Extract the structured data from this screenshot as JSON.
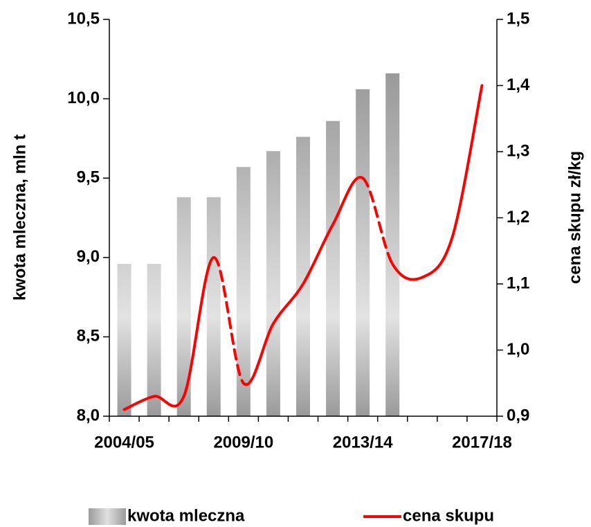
{
  "chart_data": {
    "type": "bar_line",
    "categories": [
      "2004/05",
      null,
      null,
      null,
      "2009/10",
      null,
      null,
      null,
      "2013/14",
      null,
      null,
      null,
      "2017/18"
    ],
    "series": [
      {
        "name": "kwota mleczna",
        "type": "bar",
        "color": "#a6a6a6",
        "values": [
          8.96,
          8.96,
          9.38,
          9.38,
          9.57,
          9.67,
          9.76,
          9.86,
          10.06,
          10.16,
          null,
          null,
          null
        ]
      },
      {
        "name": "cena skupu",
        "type": "line",
        "axis": "y2",
        "color": "#ff0000",
        "values": [
          0.91,
          0.93,
          0.93,
          1.14,
          0.95,
          1.04,
          1.1,
          1.19,
          1.26,
          1.13,
          1.11,
          1.17,
          1.4
        ],
        "dashed_segments": [
          [
            3,
            4
          ],
          [
            8,
            9
          ]
        ]
      }
    ],
    "ylabel": "kwota mleczna, mln t",
    "y2label": "cena skupu zł/kg",
    "ylim": [
      8.0,
      10.5
    ],
    "yticks": [
      {
        "value": 8.0,
        "label": "8,0"
      },
      {
        "value": 8.5,
        "label": "8,5"
      },
      {
        "value": 9.0,
        "label": "9,0"
      },
      {
        "value": 9.5,
        "label": "9,5"
      },
      {
        "value": 10.0,
        "label": "10,0"
      },
      {
        "value": 10.5,
        "label": "10,5"
      }
    ],
    "y2lim": [
      0.9,
      1.5
    ],
    "y2ticks": [
      {
        "value": 0.9,
        "label": "0,9"
      },
      {
        "value": 1.0,
        "label": "1,0"
      },
      {
        "value": 1.1,
        "label": "1,1"
      },
      {
        "value": 1.2,
        "label": "1,2"
      },
      {
        "value": 1.3,
        "label": "1,3"
      },
      {
        "value": 1.4,
        "label": "1,4"
      },
      {
        "value": 1.5,
        "label": "1,5"
      }
    ],
    "legend": "bottom"
  }
}
